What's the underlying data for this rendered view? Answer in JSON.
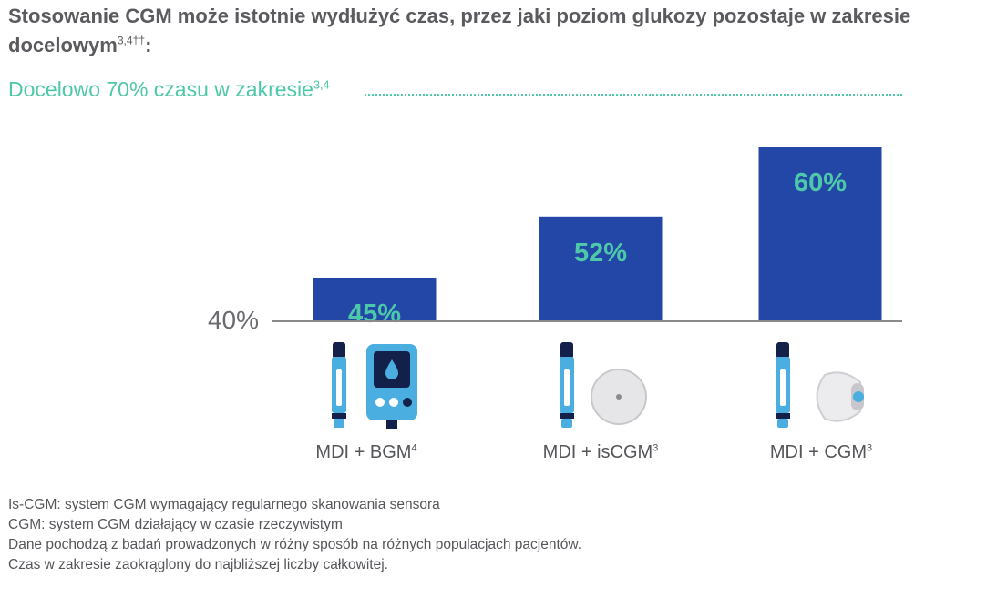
{
  "title": {
    "text": "Stosowanie CGM może istotnie wydłużyć czas, przez jaki poziom glukozy pozostaje w zakresie docelowym",
    "sup": "3,4††",
    "suffix": ":"
  },
  "target": {
    "text": "Docelowo 70% czasu w zakresie",
    "sup": "3,4"
  },
  "chart_data": {
    "type": "bar",
    "categories": [
      "MDI + BGM",
      "MDI + isCGM",
      "MDI + CGM"
    ],
    "category_superscripts": [
      "4",
      "3",
      "3"
    ],
    "values": [
      45,
      52,
      60
    ],
    "value_labels": [
      "45%",
      "52%",
      "60%"
    ],
    "baseline_label": "40%",
    "target_value": 70,
    "ylim": [
      40,
      70
    ],
    "grid": false,
    "bar_color": "#2347a6",
    "value_label_color": "#4dc8a8",
    "target_color": "#4dc8a8"
  },
  "devices": [
    {
      "icon": "insulin-pen-and-glucose-meter-icon",
      "label": "MDI + BGM",
      "sup": "4"
    },
    {
      "icon": "insulin-pen-and-iscgm-sensor-icon",
      "label": "MDI + isCGM",
      "sup": "3"
    },
    {
      "icon": "insulin-pen-and-cgm-sensor-icon",
      "label": "MDI + CGM",
      "sup": "3"
    }
  ],
  "footnotes": [
    "Is-CGM: system CGM wymagający regularnego skanowania sensora",
    "CGM: system CGM działający w czasie rzeczywistym",
    "Dane pochodzą z badań prowadzonych w różny sposób na różnych populacjach pacjentów.",
    "Czas w zakresie zaokrąglony do najbliższej liczby całkowitej."
  ]
}
